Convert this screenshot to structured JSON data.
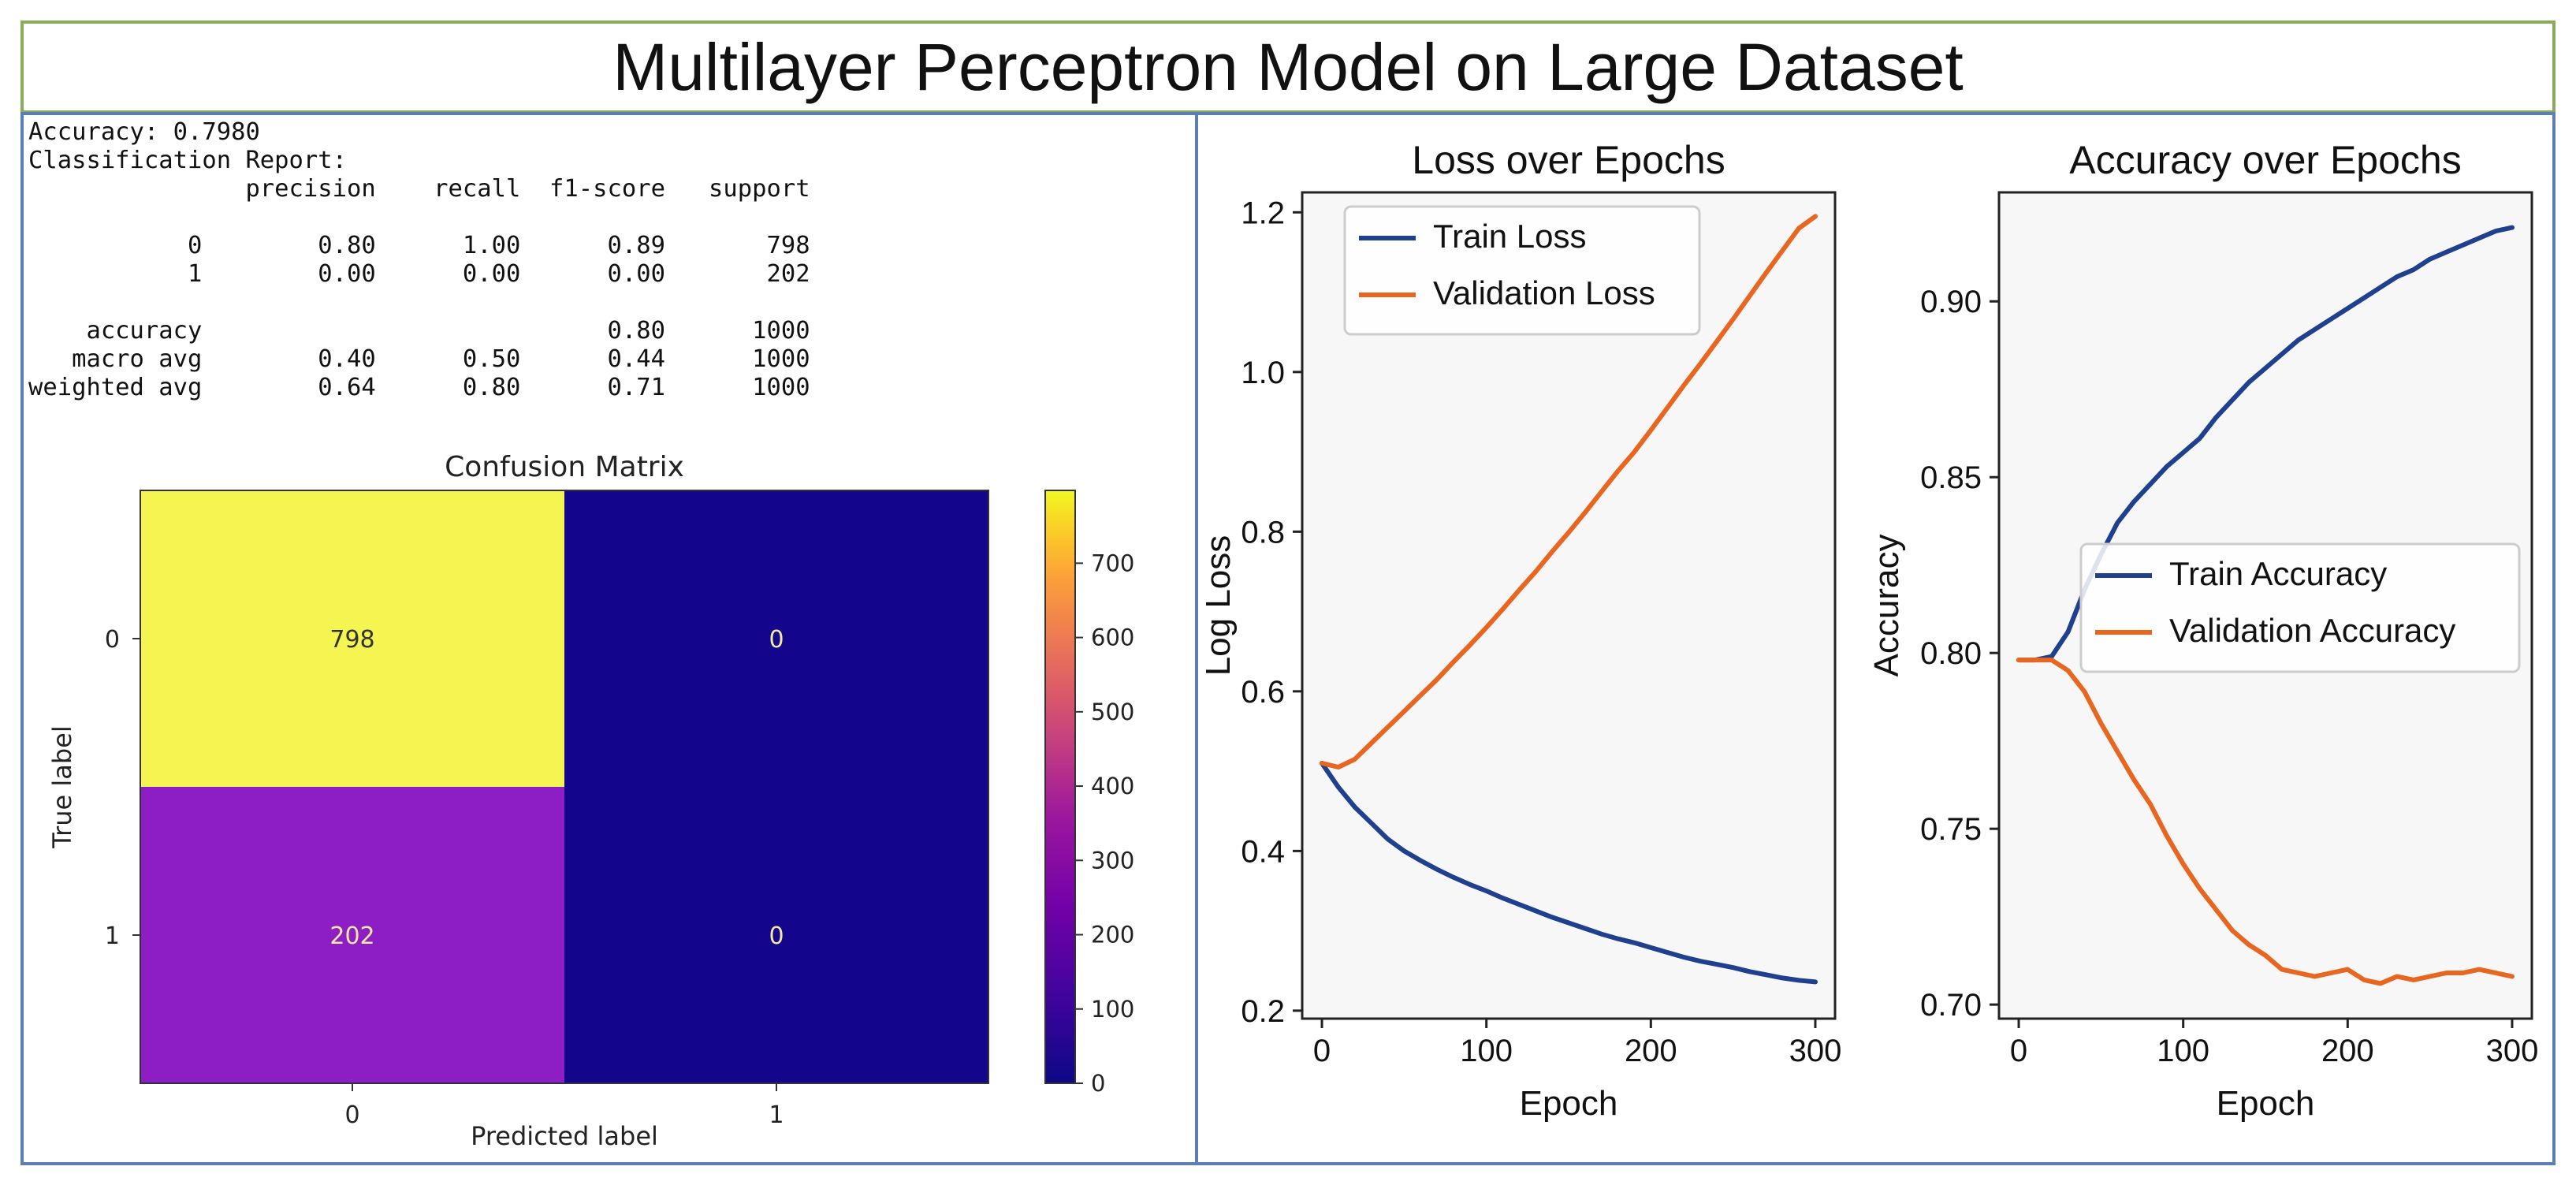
{
  "title": "Multilayer Perceptron Model on Large Dataset",
  "report": {
    "accuracy_line": "Accuracy: 0.7980",
    "header_line": "Classification Report:",
    "columns": [
      "precision",
      "recall",
      "f1-score",
      "support"
    ],
    "rows": [
      {
        "label": "0",
        "precision": "0.80",
        "recall": "1.00",
        "f1": "0.89",
        "support": "798"
      },
      {
        "label": "1",
        "precision": "0.00",
        "recall": "0.00",
        "f1": "0.00",
        "support": "202"
      },
      {
        "label": "",
        "precision": "",
        "recall": "",
        "f1": "",
        "support": ""
      },
      {
        "label": "accuracy",
        "precision": "",
        "recall": "",
        "f1": "0.80",
        "support": "1000"
      },
      {
        "label": "macro avg",
        "precision": "0.40",
        "recall": "0.50",
        "f1": "0.44",
        "support": "1000"
      },
      {
        "label": "weighted avg",
        "precision": "0.64",
        "recall": "0.80",
        "f1": "0.71",
        "support": "1000"
      }
    ]
  },
  "colors": {
    "train": "#1f3f8f",
    "validation": "#e8661f",
    "cm_high": "#f5f551",
    "cm_mid": "#8d1dc4",
    "cm_low": "#13068d",
    "axes_bg": "#f7f7f7"
  },
  "chart_data": [
    {
      "type": "heatmap",
      "title": "Confusion Matrix",
      "xlabel": "Predicted label",
      "ylabel": "True label",
      "x_ticks": [
        "0",
        "1"
      ],
      "y_ticks": [
        "0",
        "1"
      ],
      "matrix": [
        [
          798,
          0
        ],
        [
          202,
          0
        ]
      ],
      "colorbar_ticks": [
        0,
        100,
        200,
        300,
        400,
        500,
        600,
        700
      ],
      "colorbar_range": [
        0,
        798
      ]
    },
    {
      "type": "line",
      "title": "Loss over Epochs",
      "xlabel": "Epoch",
      "ylabel": "Log Loss",
      "xlim": [
        -12,
        312
      ],
      "ylim": [
        0.19,
        1.225
      ],
      "x_ticks": [
        0,
        100,
        200,
        300
      ],
      "y_ticks": [
        0.2,
        0.4,
        0.6,
        0.8,
        1.0,
        1.2
      ],
      "legend_position": "top-left",
      "x": [
        0,
        10,
        20,
        30,
        40,
        50,
        60,
        70,
        80,
        90,
        100,
        110,
        120,
        130,
        140,
        150,
        160,
        170,
        180,
        190,
        200,
        210,
        220,
        230,
        240,
        250,
        260,
        270,
        280,
        290,
        300
      ],
      "series": [
        {
          "name": "Train Loss",
          "values": [
            0.51,
            0.48,
            0.455,
            0.435,
            0.415,
            0.4,
            0.388,
            0.377,
            0.367,
            0.358,
            0.35,
            0.341,
            0.333,
            0.325,
            0.317,
            0.31,
            0.303,
            0.296,
            0.29,
            0.285,
            0.279,
            0.273,
            0.267,
            0.262,
            0.258,
            0.254,
            0.249,
            0.245,
            0.241,
            0.238,
            0.236
          ]
        },
        {
          "name": "Validation Loss",
          "values": [
            0.51,
            0.505,
            0.515,
            0.535,
            0.555,
            0.575,
            0.595,
            0.615,
            0.637,
            0.658,
            0.68,
            0.703,
            0.727,
            0.75,
            0.775,
            0.799,
            0.824,
            0.85,
            0.876,
            0.9,
            0.927,
            0.955,
            0.983,
            1.01,
            1.038,
            1.066,
            1.095,
            1.124,
            1.152,
            1.18,
            1.195
          ]
        }
      ]
    },
    {
      "type": "line",
      "title": "Accuracy over Epochs",
      "xlabel": "Epoch",
      "ylabel": "Accuracy",
      "xlim": [
        -12,
        312
      ],
      "ylim": [
        0.696,
        0.931
      ],
      "x_ticks": [
        0,
        100,
        200,
        300
      ],
      "y_ticks": [
        0.7,
        0.75,
        0.8,
        0.85,
        0.9
      ],
      "legend_position": "center-right",
      "x": [
        0,
        10,
        20,
        30,
        40,
        50,
        60,
        70,
        80,
        90,
        100,
        110,
        120,
        130,
        140,
        150,
        160,
        170,
        180,
        190,
        200,
        210,
        220,
        230,
        240,
        250,
        260,
        270,
        280,
        290,
        300
      ],
      "series": [
        {
          "name": "Train Accuracy",
          "values": [
            0.798,
            0.798,
            0.799,
            0.806,
            0.818,
            0.828,
            0.837,
            0.843,
            0.848,
            0.853,
            0.857,
            0.861,
            0.867,
            0.872,
            0.877,
            0.881,
            0.885,
            0.889,
            0.892,
            0.895,
            0.898,
            0.901,
            0.904,
            0.907,
            0.909,
            0.912,
            0.914,
            0.916,
            0.918,
            0.92,
            0.921
          ]
        },
        {
          "name": "Validation Accuracy",
          "values": [
            0.798,
            0.798,
            0.798,
            0.795,
            0.789,
            0.78,
            0.772,
            0.764,
            0.757,
            0.748,
            0.74,
            0.733,
            0.727,
            0.721,
            0.717,
            0.714,
            0.71,
            0.709,
            0.708,
            0.709,
            0.71,
            0.707,
            0.706,
            0.708,
            0.707,
            0.708,
            0.709,
            0.709,
            0.71,
            0.709,
            0.708
          ]
        }
      ]
    }
  ]
}
